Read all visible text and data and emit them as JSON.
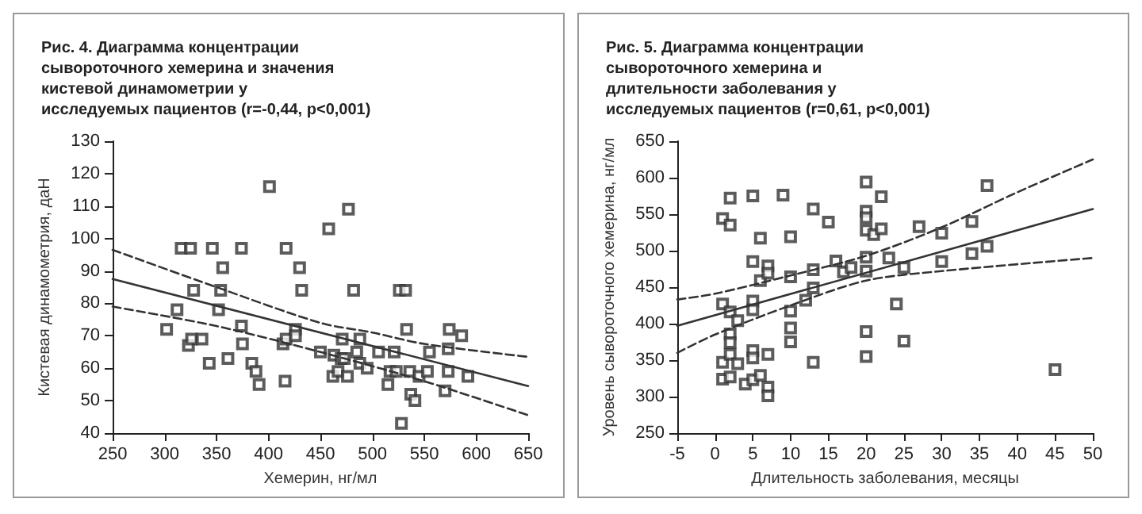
{
  "chart_data": [
    {
      "type": "scatter",
      "title": "Рис. 4. Диаграмма концентрации сывороточного хемерина и значения кистевой динамометрии у исследуемых пациентов (r=-0,44, p<0,001)",
      "xlabel": "Хемерин, нг/мл",
      "ylabel": "Кистевая динамометрия, даН",
      "xlim": [
        250,
        650
      ],
      "xticks": [
        250,
        300,
        350,
        400,
        450,
        500,
        550,
        600,
        650
      ],
      "ylim": [
        40,
        130
      ],
      "yticks": [
        40,
        50,
        60,
        70,
        80,
        90,
        100,
        110,
        120,
        130
      ],
      "series": [
        {
          "marker": "square",
          "color": "#333333",
          "x": [
            302,
            312,
            316,
            325,
            323,
            326,
            328,
            336,
            343,
            346,
            356,
            352,
            354,
            361,
            374,
            374,
            375,
            384,
            388,
            391,
            401,
            416,
            414,
            417,
            417,
            426,
            426,
            430,
            432,
            450,
            458,
            463,
            462,
            467,
            470,
            471,
            473,
            476,
            477,
            482,
            485,
            488,
            488,
            495,
            506,
            515,
            517,
            521,
            523,
            526,
            532,
            533,
            528,
            536,
            537,
            541,
            545,
            553,
            555,
            570,
            573,
            573,
            574,
            586,
            592
          ],
          "values": [
            72,
            78,
            97,
            97,
            67,
            69,
            84,
            69,
            61.5,
            97,
            91,
            78,
            84,
            63,
            97,
            73,
            67.5,
            61.5,
            59,
            55,
            116,
            56,
            67.5,
            69,
            97,
            72,
            70,
            91,
            84,
            65,
            103,
            64,
            57.5,
            59,
            63,
            69,
            63,
            57.5,
            109,
            84,
            65,
            69,
            61.5,
            60,
            65,
            55,
            59,
            65,
            59,
            84,
            84,
            72,
            43,
            59,
            52,
            50,
            57.5,
            59,
            65,
            53,
            59,
            66,
            72,
            70,
            57.5
          ]
        },
        {
          "type": "line",
          "color": "#333333",
          "line_style": "solid",
          "x": [
            250,
            650
          ],
          "values": [
            87.5,
            54.5
          ]
        },
        {
          "type": "line",
          "color": "#333333",
          "line_style": "dashed",
          "x": [
            250,
            350,
            450,
            500,
            550,
            650
          ],
          "values": [
            96.5,
            85,
            74,
            71,
            67.5,
            63.5
          ]
        },
        {
          "type": "line",
          "color": "#333333",
          "line_style": "dashed",
          "x": [
            250,
            350,
            450,
            550,
            650
          ],
          "values": [
            79,
            73,
            65,
            56,
            45.5
          ]
        }
      ]
    },
    {
      "type": "scatter",
      "title": "Рис. 5. Диаграмма концентрации сывороточного хемерина и длительности заболевания у исследуемых пациентов (r=0,61, p<0,001)",
      "xlabel": "Длительность заболевания, месяцы",
      "ylabel": "Уровень сывороточного хемерина, нг/мл",
      "xlim": [
        -5,
        50
      ],
      "xticks": [
        -5,
        0,
        5,
        10,
        15,
        20,
        25,
        30,
        35,
        40,
        45,
        50
      ],
      "ylim": [
        250,
        650
      ],
      "yticks": [
        250,
        300,
        350,
        400,
        450,
        500,
        550,
        600,
        650
      ],
      "series": [
        {
          "marker": "square",
          "color": "#333333",
          "x": [
            1,
            1,
            1,
            2,
            2,
            1,
            2,
            2,
            2,
            2,
            2,
            3,
            3,
            4,
            5,
            5,
            5,
            5,
            5,
            5,
            5,
            6,
            6,
            6,
            7,
            7,
            7,
            7,
            7,
            9,
            10,
            10,
            10,
            10,
            10,
            12,
            13,
            13,
            13,
            13,
            15,
            16,
            17,
            18,
            20,
            20,
            20,
            20,
            20,
            20,
            20,
            20,
            21,
            22,
            22,
            23,
            24,
            25,
            25,
            27,
            30,
            30,
            34,
            34,
            36,
            36,
            45
          ],
          "values": [
            347,
            324,
            544,
            572,
            535,
            427,
            416,
            386,
            374,
            358,
            327,
            404,
            345,
            317,
            575,
            485,
            431,
            419,
            363,
            353,
            323,
            517,
            459,
            329,
            479,
            469,
            358,
            313,
            301,
            576,
            519,
            464,
            417,
            394,
            375,
            432,
            557,
            474,
            449,
            347,
            539,
            486,
            471,
            477,
            594,
            554,
            545,
            528,
            491,
            472,
            389,
            355,
            522,
            574,
            530,
            490,
            427,
            477,
            376,
            533,
            524,
            485,
            540,
            496,
            589,
            506,
            337
          ]
        },
        {
          "type": "line",
          "color": "#333333",
          "line_style": "solid",
          "x": [
            -5,
            50
          ],
          "values": [
            397,
            557
          ]
        },
        {
          "type": "line",
          "color": "#333333",
          "line_style": "dashed",
          "x": [
            -5,
            0,
            10,
            20,
            30,
            40,
            50
          ],
          "values": [
            433,
            441,
            466,
            493,
            532,
            580,
            625
          ]
        },
        {
          "type": "line",
          "color": "#333333",
          "line_style": "dashed",
          "x": [
            -5,
            0,
            10,
            20,
            30,
            50
          ],
          "values": [
            360,
            385,
            425,
            459,
            472,
            490
          ]
        }
      ]
    }
  ]
}
